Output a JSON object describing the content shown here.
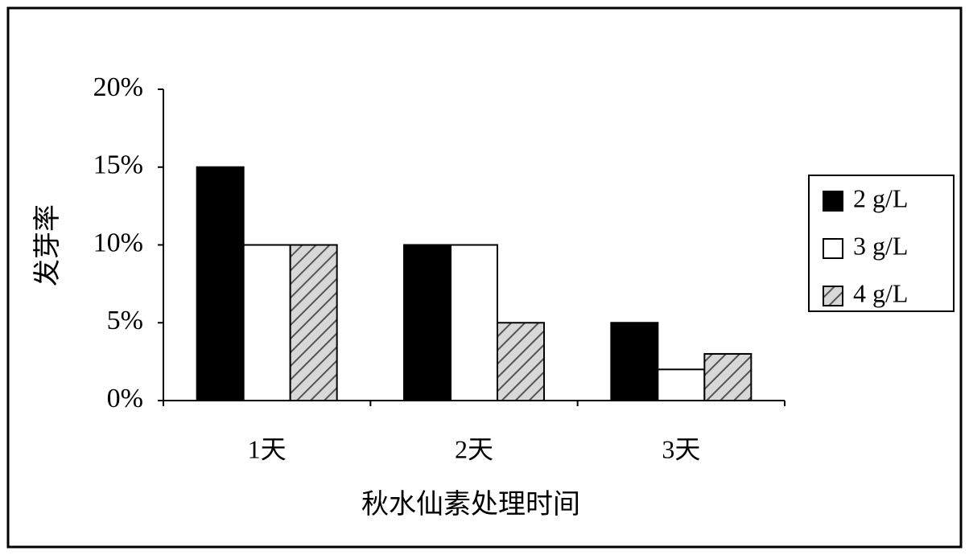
{
  "chart_data": {
    "type": "bar",
    "x_label": "秋水仙素处理时间",
    "y_label": "发芽率",
    "categories": [
      "1天",
      "2天",
      "3天"
    ],
    "series": [
      {
        "name": "2 g/L",
        "color": "#000000",
        "values": [
          15,
          10,
          5
        ]
      },
      {
        "name": "3 g/L",
        "color": "#ffffff",
        "values": [
          10,
          10,
          2
        ]
      },
      {
        "name": "4 g/L",
        "color": "#cfcfcf",
        "pattern": "diagonal",
        "values": [
          10,
          5,
          3
        ]
      }
    ],
    "ylim": [
      0,
      20
    ],
    "yticks": [
      {
        "value": 0,
        "label": "0%"
      },
      {
        "value": 5,
        "label": "5%"
      },
      {
        "value": 10,
        "label": "10%"
      },
      {
        "value": 15,
        "label": "15%"
      },
      {
        "value": 20,
        "label": "20%"
      }
    ],
    "grid": false,
    "legend": "right"
  }
}
